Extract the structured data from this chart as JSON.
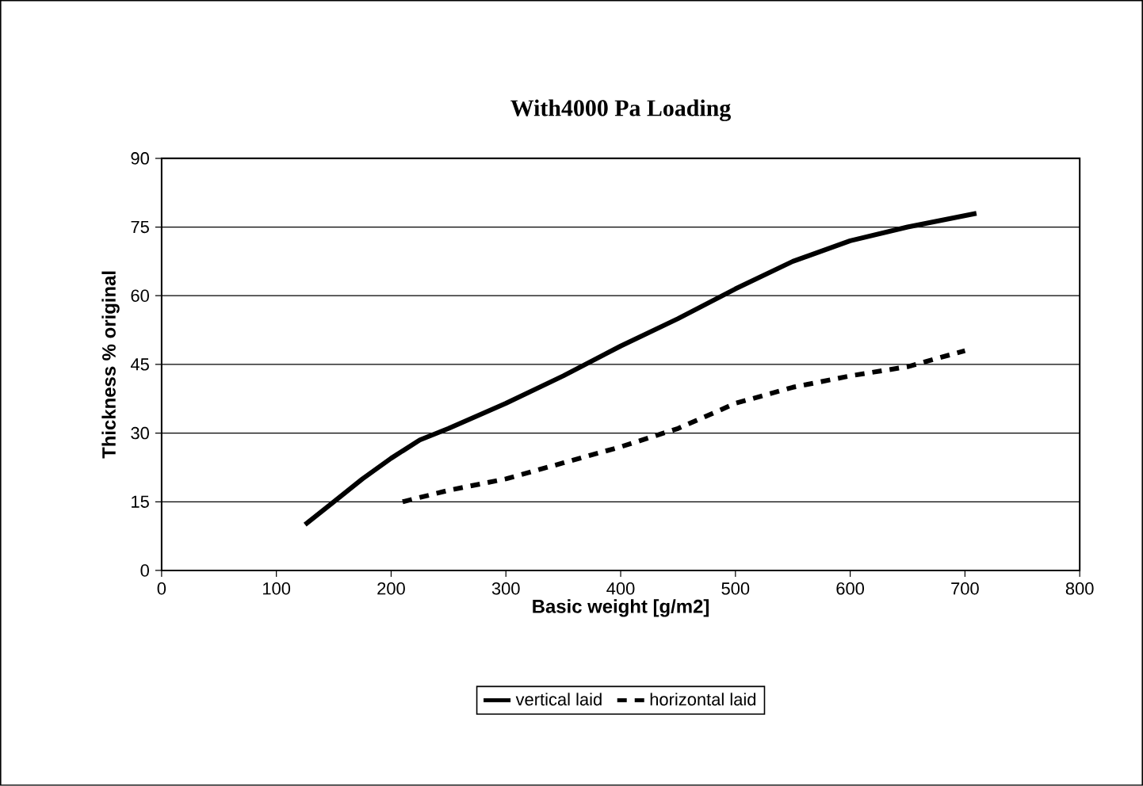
{
  "chart_data": {
    "type": "line",
    "title": "With4000 Pa Loading",
    "xlabel": "Basic weight [g/m2]",
    "ylabel": "Thickness % original",
    "series": [
      {
        "name": "vertical laid",
        "color": "#000000",
        "line_style": "solid",
        "x": [
          125,
          150,
          175,
          200,
          225,
          250,
          300,
          350,
          400,
          450,
          500,
          550,
          600,
          650,
          710
        ],
        "values": [
          10,
          15,
          20,
          24.5,
          28.5,
          31,
          36.5,
          42.5,
          49,
          55,
          61.5,
          67.5,
          72,
          75,
          78
        ]
      },
      {
        "name": "horizontal laid",
        "color": "#000000",
        "line_style": "dashed",
        "x": [
          210,
          250,
          300,
          350,
          400,
          450,
          500,
          550,
          600,
          650,
          700
        ],
        "values": [
          15,
          17.5,
          20,
          23.5,
          27,
          31,
          36.5,
          40,
          42.5,
          44.5,
          48
        ]
      }
    ],
    "xlim": [
      0,
      800
    ],
    "xticks": [
      0,
      100,
      200,
      300,
      400,
      500,
      600,
      700,
      800
    ],
    "ylim": [
      0,
      90
    ],
    "yticks": [
      0,
      15,
      30,
      45,
      60,
      75,
      90
    ],
    "grid": "y",
    "legend": "bottom",
    "marker": "none"
  }
}
